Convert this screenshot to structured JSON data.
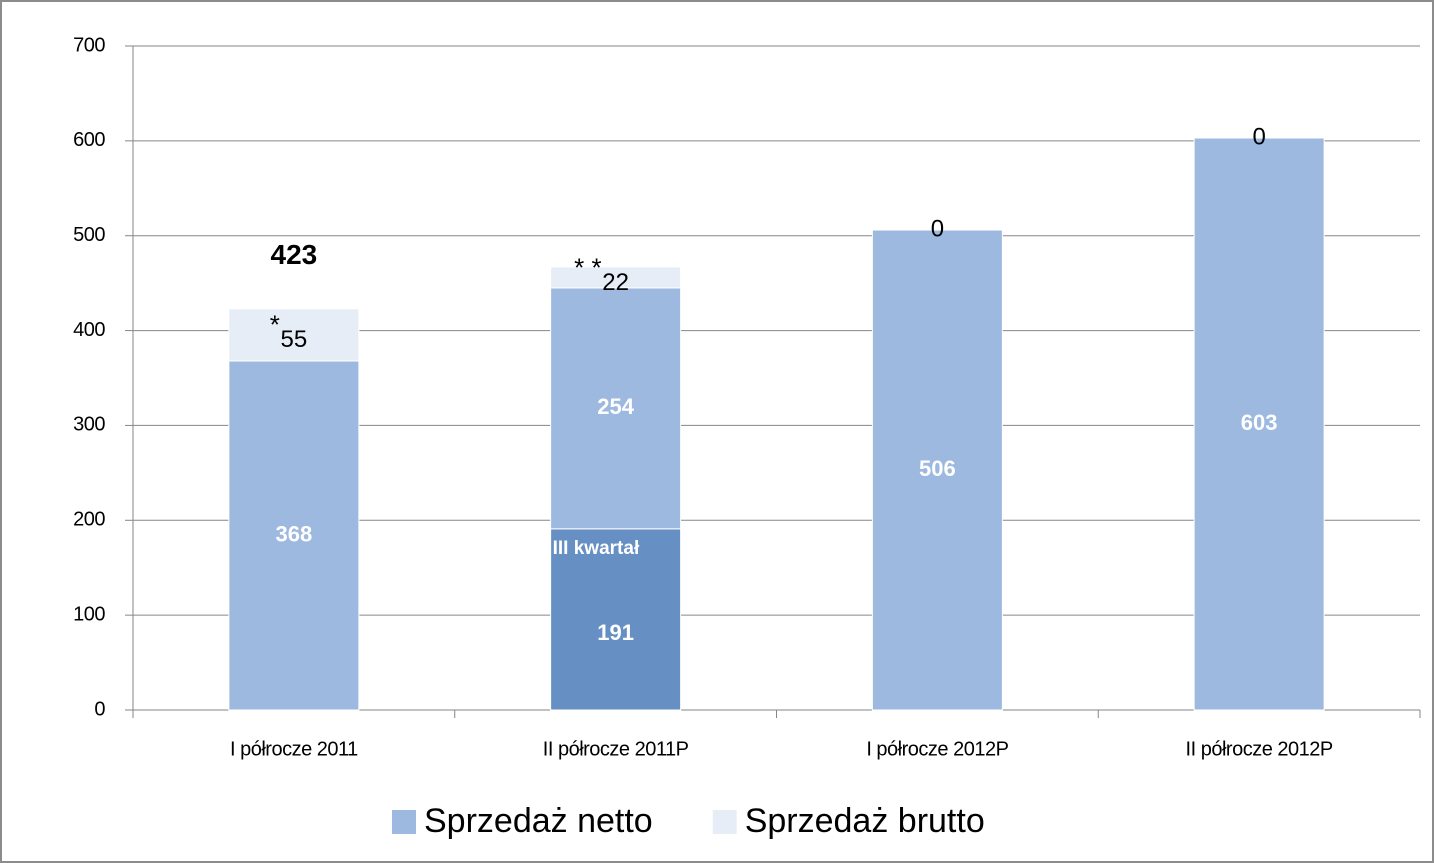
{
  "chart_data": {
    "type": "bar",
    "stacked": true,
    "categories": [
      "I półrocze 2011",
      "II półrocze 2011P",
      "I półrocze 2012P",
      "II półrocze 2012P"
    ],
    "series": [
      {
        "name": "III kwartał",
        "color": "#6690c4",
        "in_legend": false,
        "values": [
          null,
          191,
          null,
          null
        ]
      },
      {
        "name": "Sprzedaż netto",
        "color": "#9db9df",
        "values": [
          368,
          254,
          506,
          603
        ]
      },
      {
        "name": "Sprzedaż brutto",
        "color": "#e6edf7",
        "values": [
          55,
          22,
          0,
          0
        ],
        "notes": [
          "*",
          "* *",
          null,
          null
        ]
      }
    ],
    "total_labels": [
      423,
      null,
      null,
      null
    ],
    "ylim": [
      0,
      700
    ],
    "yticks": [
      0,
      100,
      200,
      300,
      400,
      500,
      600,
      700
    ],
    "grid": true,
    "legend": "bottom"
  }
}
